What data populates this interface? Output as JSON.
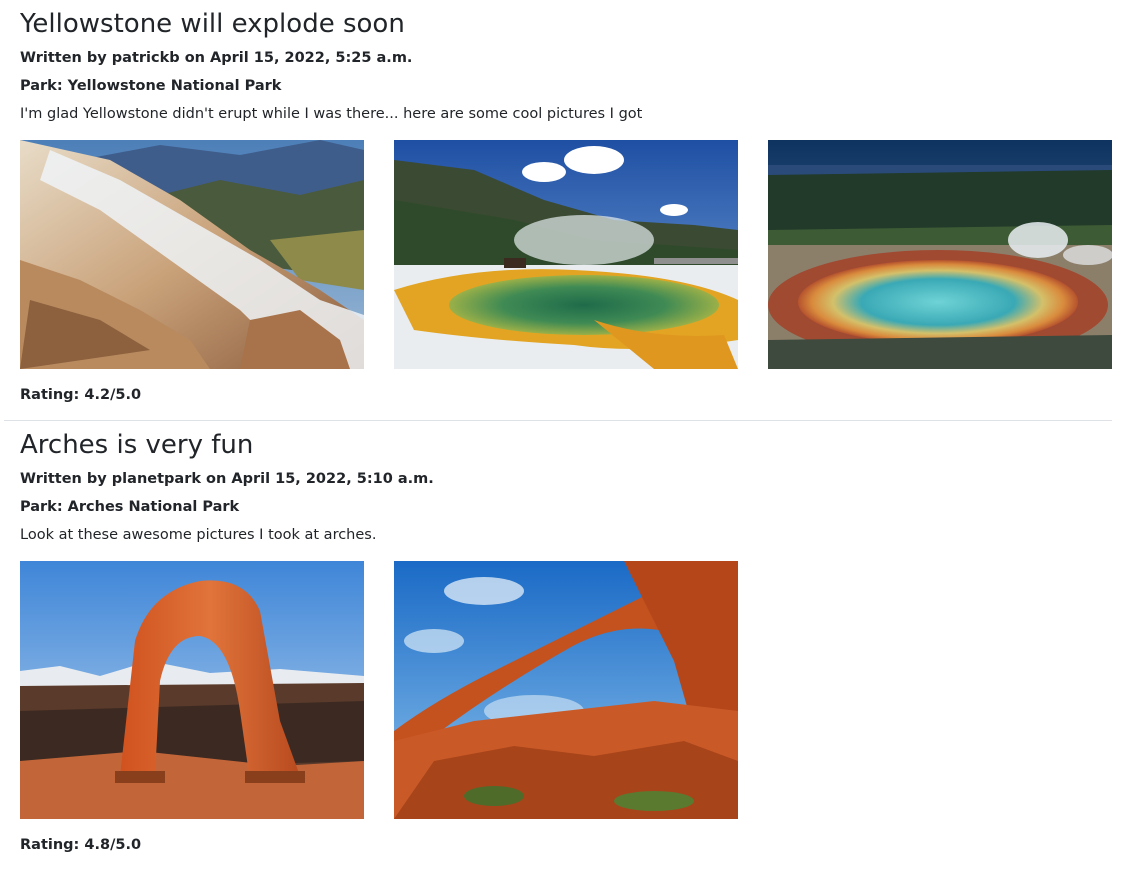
{
  "posts": [
    {
      "title": "Yellowstone will explode soon",
      "byline": "Written by patrickb on April 15, 2022, 5:25 a.m.",
      "park": "Park: Yellowstone National Park",
      "body": "I'm glad Yellowstone didn't erupt while I was there... here are some cool pictures I got",
      "photos": [
        "mammoth-hot-springs-terraces",
        "emerald-pool-with-bison",
        "grand-prismatic-spring-aerial"
      ],
      "rating": "Rating: 4.2/5.0"
    },
    {
      "title": "Arches is very fun",
      "byline": "Written by planetpark on April 15, 2022, 5:10 a.m.",
      "park": "Park: Arches National Park",
      "body": "Look at these awesome pictures I took at arches.",
      "photos": [
        "delicate-arch-with-snowy-mountains",
        "red-rock-arch-blue-sky"
      ],
      "rating": "Rating: 4.8/5.0"
    }
  ]
}
